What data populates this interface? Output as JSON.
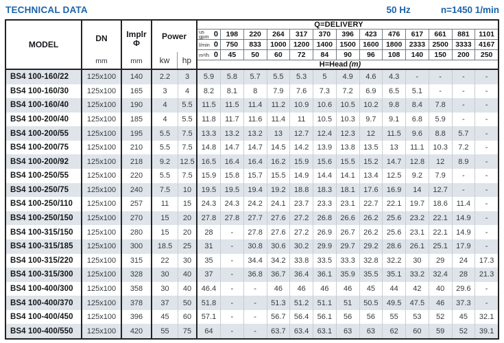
{
  "header": {
    "title": "TECHNICAL DATA",
    "frequency": "50 Hz",
    "speed": "n=1450 1/min"
  },
  "colors": {
    "accent_blue": "#1a63a8",
    "row_shade": "#dee4e9",
    "border_dark": "#222222",
    "border_light": "#c6ccd1",
    "header_rule": "#70777e"
  },
  "table": {
    "column_headers": {
      "model": "MODEL",
      "dn": "DN",
      "dn_unit": "mm",
      "impeller": "Implr",
      "impeller_symbol": "Φ",
      "impeller_unit": "mm",
      "power": "Power",
      "power_kw": "kw",
      "power_hp": "hp"
    },
    "delivery_header": {
      "title": "Q=DELIVERY",
      "head_label": "H=Head",
      "head_unit": "(m)"
    },
    "flow_rows": [
      {
        "key": "us-gpm",
        "label_lines": [
          "us",
          "gpm"
        ],
        "zero": "0",
        "values": [
          "198",
          "220",
          "264",
          "317",
          "370",
          "396",
          "423",
          "476",
          "617",
          "661",
          "881",
          "1101"
        ]
      },
      {
        "key": "l-min",
        "label_lines": [
          "l/min"
        ],
        "zero": "0",
        "values": [
          "750",
          "833",
          "1000",
          "1200",
          "1400",
          "1500",
          "1600",
          "1800",
          "2333",
          "2500",
          "3333",
          "4167"
        ]
      },
      {
        "key": "m3-h",
        "label_lines": [
          "m³/h"
        ],
        "zero": "0",
        "values": [
          "45",
          "50",
          "60",
          "72",
          "84",
          "90",
          "96",
          "108",
          "140",
          "150",
          "200",
          "250"
        ]
      }
    ],
    "rows": [
      {
        "model": "BS4 100-160/22",
        "dn": "125x100",
        "impeller": "140",
        "kw": "2.2",
        "hp": "3",
        "head": [
          "5.9",
          "5.8",
          "5.7",
          "5.5",
          "5.3",
          "5",
          "4.9",
          "4.6",
          "4.3",
          "-",
          "-",
          "-",
          "-"
        ]
      },
      {
        "model": "BS4 100-160/30",
        "dn": "125x100",
        "impeller": "165",
        "kw": "3",
        "hp": "4",
        "head": [
          "8.2",
          "8.1",
          "8",
          "7.9",
          "7.6",
          "7.3",
          "7.2",
          "6.9",
          "6.5",
          "5.1",
          "-",
          "-",
          "-"
        ]
      },
      {
        "model": "BS4 100-160/40",
        "dn": "125x100",
        "impeller": "190",
        "kw": "4",
        "hp": "5.5",
        "head": [
          "11.5",
          "11.5",
          "11.4",
          "11.2",
          "10.9",
          "10.6",
          "10.5",
          "10.2",
          "9.8",
          "8.4",
          "7.8",
          "-",
          "-"
        ]
      },
      {
        "model": "BS4 100-200/40",
        "dn": "125x100",
        "impeller": "185",
        "kw": "4",
        "hp": "5.5",
        "head": [
          "11.8",
          "11.7",
          "11.6",
          "11.4",
          "11",
          "10.5",
          "10.3",
          "9.7",
          "9.1",
          "6.8",
          "5.9",
          "-",
          "-"
        ]
      },
      {
        "model": "BS4 100-200/55",
        "dn": "125x100",
        "impeller": "195",
        "kw": "5.5",
        "hp": "7.5",
        "head": [
          "13.3",
          "13.2",
          "13.2",
          "13",
          "12.7",
          "12.4",
          "12.3",
          "12",
          "11.5",
          "9.6",
          "8.8",
          "5.7",
          "-"
        ]
      },
      {
        "model": "BS4 100-200/75",
        "dn": "125x100",
        "impeller": "210",
        "kw": "5.5",
        "hp": "7.5",
        "head": [
          "14.8",
          "14.7",
          "14.7",
          "14.5",
          "14.2",
          "13.9",
          "13.8",
          "13.5",
          "13",
          "11.1",
          "10.3",
          "7.2",
          "-"
        ]
      },
      {
        "model": "BS4 100-200/92",
        "dn": "125x100",
        "impeller": "218",
        "kw": "9.2",
        "hp": "12.5",
        "head": [
          "16.5",
          "16.4",
          "16.4",
          "16.2",
          "15.9",
          "15.6",
          "15.5",
          "15.2",
          "14.7",
          "12.8",
          "12",
          "8.9",
          "-"
        ]
      },
      {
        "model": "BS4 100-250/55",
        "dn": "125x100",
        "impeller": "220",
        "kw": "5.5",
        "hp": "7.5",
        "head": [
          "15.9",
          "15.8",
          "15.7",
          "15.5",
          "14.9",
          "14.4",
          "14.1",
          "13.4",
          "12.5",
          "9.2",
          "7.9",
          "-",
          "-"
        ]
      },
      {
        "model": "BS4 100-250/75",
        "dn": "125x100",
        "impeller": "240",
        "kw": "7.5",
        "hp": "10",
        "head": [
          "19.5",
          "19.5",
          "19.4",
          "19.2",
          "18.8",
          "18.3",
          "18.1",
          "17.6",
          "16.9",
          "14",
          "12.7",
          "-",
          "-"
        ]
      },
      {
        "model": "BS4 100-250/110",
        "dn": "125x100",
        "impeller": "257",
        "kw": "11",
        "hp": "15",
        "head": [
          "24.3",
          "24.3",
          "24.2",
          "24.1",
          "23.7",
          "23.3",
          "23.1",
          "22.7",
          "22.1",
          "19.7",
          "18.6",
          "11.4",
          "-"
        ]
      },
      {
        "model": "BS4 100-250/150",
        "dn": "125x100",
        "impeller": "270",
        "kw": "15",
        "hp": "20",
        "head": [
          "27.8",
          "27.8",
          "27.7",
          "27.6",
          "27.2",
          "26.8",
          "26.6",
          "26.2",
          "25.6",
          "23.2",
          "22.1",
          "14.9",
          "-"
        ]
      },
      {
        "model": "BS4 100-315/150",
        "dn": "125x100",
        "impeller": "280",
        "kw": "15",
        "hp": "20",
        "head": [
          "28",
          "-",
          "27.8",
          "27.6",
          "27.2",
          "26.9",
          "26.7",
          "26.2",
          "25.6",
          "23.1",
          "22.1",
          "14.9",
          "-"
        ]
      },
      {
        "model": "BS4 100-315/185",
        "dn": "125x100",
        "impeller": "300",
        "kw": "18.5",
        "hp": "25",
        "head": [
          "31",
          "-",
          "30.8",
          "30.6",
          "30.2",
          "29.9",
          "29.7",
          "29.2",
          "28.6",
          "26.1",
          "25.1",
          "17.9",
          "-"
        ]
      },
      {
        "model": "BS4 100-315/220",
        "dn": "125x100",
        "impeller": "315",
        "kw": "22",
        "hp": "30",
        "head": [
          "35",
          "-",
          "34.4",
          "34.2",
          "33.8",
          "33.5",
          "33.3",
          "32.8",
          "32.2",
          "30",
          "29",
          "24",
          "17.3"
        ]
      },
      {
        "model": "BS4 100-315/300",
        "dn": "125x100",
        "impeller": "328",
        "kw": "30",
        "hp": "40",
        "head": [
          "37",
          "-",
          "36.8",
          "36.7",
          "36.4",
          "36.1",
          "35.9",
          "35.5",
          "35.1",
          "33.2",
          "32.4",
          "28",
          "21.3"
        ]
      },
      {
        "model": "BS4 100-400/300",
        "dn": "125x100",
        "impeller": "358",
        "kw": "30",
        "hp": "40",
        "head": [
          "46.4",
          "-",
          "-",
          "46",
          "46",
          "46",
          "46",
          "45",
          "44",
          "42",
          "40",
          "29.6",
          "-"
        ]
      },
      {
        "model": "BS4 100-400/370",
        "dn": "125x100",
        "impeller": "378",
        "kw": "37",
        "hp": "50",
        "head": [
          "51.8",
          "-",
          "-",
          "51.3",
          "51.2",
          "51.1",
          "51",
          "50.5",
          "49.5",
          "47.5",
          "46",
          "37.3",
          "-"
        ]
      },
      {
        "model": "BS4 100-400/450",
        "dn": "125x100",
        "impeller": "396",
        "kw": "45",
        "hp": "60",
        "head": [
          "57.1",
          "-",
          "-",
          "56.7",
          "56.4",
          "56.1",
          "56",
          "56",
          "55",
          "53",
          "52",
          "45",
          "32.1"
        ]
      },
      {
        "model": "BS4 100-400/550",
        "dn": "125x100",
        "impeller": "420",
        "kw": "55",
        "hp": "75",
        "head": [
          "64",
          "-",
          "-",
          "63.7",
          "63.4",
          "63.1",
          "63",
          "63",
          "62",
          "60",
          "59",
          "52",
          "39.1"
        ]
      }
    ]
  }
}
